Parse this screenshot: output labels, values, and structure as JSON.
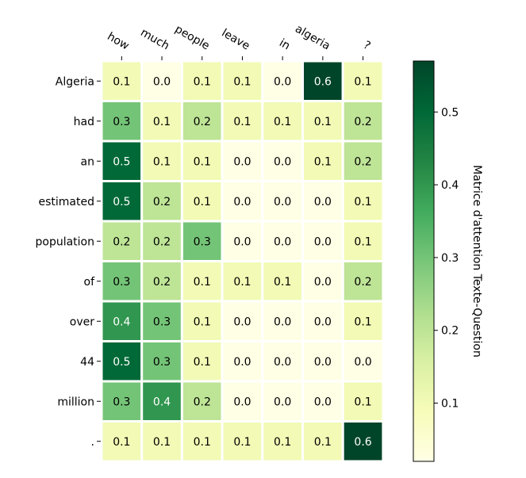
{
  "chart_data": {
    "type": "heatmap",
    "title": "",
    "x_categories": [
      "how",
      "much",
      "people",
      "leave",
      "in",
      "algeria",
      "?"
    ],
    "y_categories": [
      "Algeria",
      "had",
      "an",
      "estimated",
      "population",
      "of",
      "over",
      "44",
      "million",
      "."
    ],
    "values": [
      [
        0.1,
        0.0,
        0.1,
        0.1,
        0.0,
        0.6,
        0.1
      ],
      [
        0.3,
        0.1,
        0.2,
        0.1,
        0.1,
        0.1,
        0.2
      ],
      [
        0.5,
        0.1,
        0.1,
        0.0,
        0.0,
        0.1,
        0.2
      ],
      [
        0.5,
        0.2,
        0.1,
        0.0,
        0.0,
        0.0,
        0.1
      ],
      [
        0.2,
        0.2,
        0.3,
        0.0,
        0.0,
        0.0,
        0.1
      ],
      [
        0.3,
        0.2,
        0.1,
        0.1,
        0.1,
        0.0,
        0.2
      ],
      [
        0.4,
        0.3,
        0.1,
        0.0,
        0.0,
        0.0,
        0.1
      ],
      [
        0.5,
        0.3,
        0.1,
        0.0,
        0.0,
        0.0,
        0.0
      ],
      [
        0.3,
        0.4,
        0.2,
        0.0,
        0.0,
        0.0,
        0.1
      ],
      [
        0.1,
        0.1,
        0.1,
        0.1,
        0.1,
        0.1,
        0.6
      ]
    ],
    "colormap": "YlGn",
    "colorbar": {
      "label": "Matrice d'attention Texte-Question",
      "ticks": [
        0.1,
        0.2,
        0.3,
        0.4,
        0.5
      ],
      "range": [
        0.02,
        0.57
      ]
    },
    "grid": false,
    "cell_border_color": "#ffffff"
  }
}
